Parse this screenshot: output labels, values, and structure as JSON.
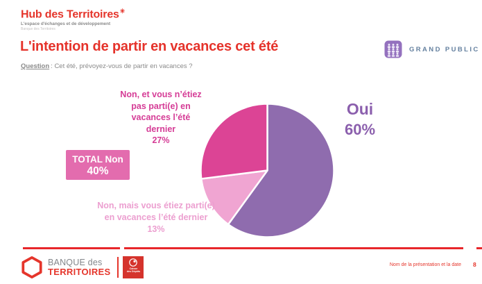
{
  "slide": {
    "brand": {
      "name": "Hub des Territoires",
      "mark": "✳",
      "tagline": "L'espace d'échanges et de développement",
      "subline": "Banque des Territoires"
    },
    "title": "L'intention de partir en vacances cet été",
    "question": {
      "label": "Question",
      "text": ": Cet été, prévoyez-vous de partir en vacances ?"
    },
    "audience": {
      "label": "GRAND PUBLIC"
    }
  },
  "chart_data": {
    "type": "pie",
    "title": "L'intention de partir en vacances cet été",
    "question": "Cet été, prévoyez-vous de partir en vacances ?",
    "start_angle_deg": 0,
    "direction": "clockwise",
    "slices": [
      {
        "label": "Oui",
        "value": 60,
        "color": "#8F6CAE"
      },
      {
        "label": "Non, mais vous étiez parti(e) en vacances l’été dernier",
        "value": 13,
        "color": "#F0A5D2"
      },
      {
        "label": "Non, et vous n’étiez pas parti(e) en vacances l’été dernier",
        "value": 27,
        "color": "#DC4495"
      }
    ],
    "callout": {
      "label": "TOTAL Non",
      "value": 40,
      "display": "40%"
    },
    "legend_position": "labels-around-pie"
  },
  "labels": {
    "oui": {
      "name": "Oui",
      "pct": "60%"
    },
    "non_et": {
      "line1": "Non, et vous n’étiez",
      "line2": "pas parti(e) en",
      "line3": "vacances l’été",
      "line4": "dernier",
      "pct": "27%"
    },
    "non_mais": {
      "line1": "Non, mais vous étiez parti(e)",
      "line2": "en vacances l’été dernier",
      "pct": "13%"
    },
    "total": {
      "line1": "TOTAL Non",
      "line2": "40%"
    }
  },
  "footer": {
    "bdt_line1": "BANQUE des",
    "bdt_line2": "TERRITOIRES",
    "cdc_line1": "Caisse",
    "cdc_line2": "des Dépôts",
    "note": "Nom de la présentation et la date",
    "page": "8"
  },
  "colors": {
    "accent_red": "#E5352B",
    "pie_oui": "#8F6CAE",
    "pie_non_et": "#DC4495",
    "pie_non_mais": "#F0A5D2",
    "label_oui": "#8B5FAD",
    "label_non_et": "#D53C96",
    "label_non_mais": "#EC9FD0",
    "total_box_bg": "#E36CAE",
    "badge_text": "#64809F",
    "badge_icon_bg": "#9471BE",
    "text_gray": "#8A8A8A"
  }
}
